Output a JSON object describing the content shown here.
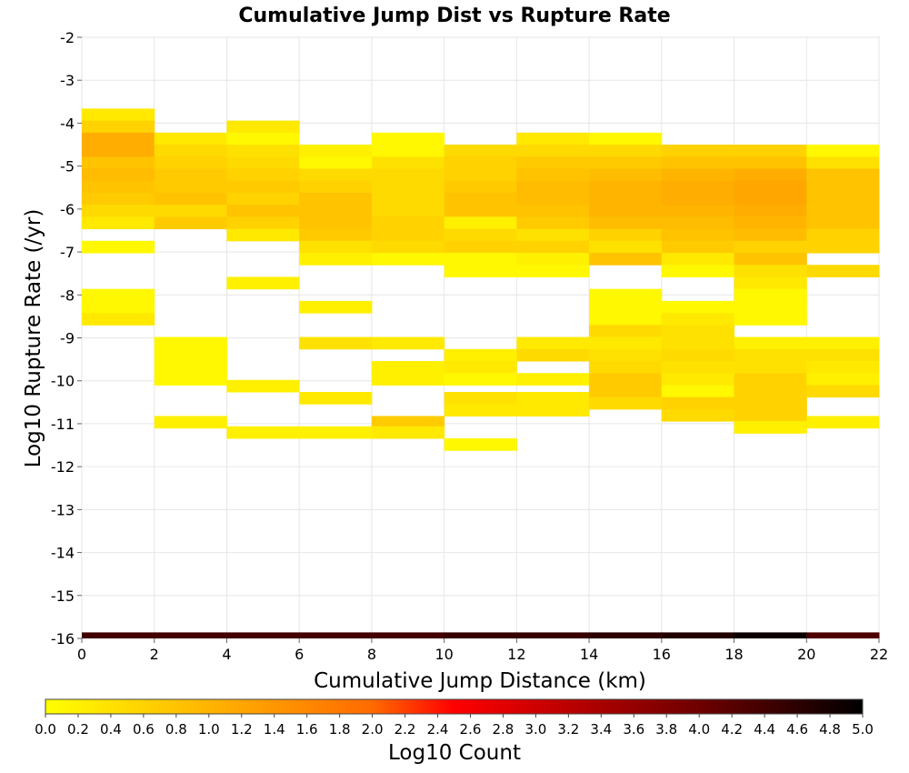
{
  "chart_data": {
    "type": "heatmap",
    "title": "Cumulative Jump Dist vs Rupture Rate",
    "xlabel": "Cumulative Jump Distance (km)",
    "ylabel": "Log10 Rupture Rate (/yr)",
    "xlim": [
      0,
      22
    ],
    "ylim": [
      -16,
      -2
    ],
    "xticks": [
      0,
      2,
      4,
      6,
      8,
      10,
      12,
      14,
      16,
      18,
      20,
      22
    ],
    "yticks": [
      -2,
      -3,
      -4,
      -5,
      -6,
      -7,
      -8,
      -9,
      -10,
      -11,
      -12,
      -13,
      -14,
      -15,
      -16
    ],
    "x_bin_width": 2,
    "y_bin_height": 0.28,
    "grid": true,
    "colorscale": {
      "label": "Log10 Count",
      "min": 0.0,
      "max": 5.0,
      "ticks": [
        "0.0",
        "0.2",
        "0.4",
        "0.6",
        "0.8",
        "1.0",
        "1.2",
        "1.4",
        "1.6",
        "1.8",
        "2.0",
        "2.2",
        "2.4",
        "2.6",
        "2.8",
        "3.0",
        "3.2",
        "3.4",
        "3.6",
        "3.8",
        "4.0",
        "4.2",
        "4.4",
        "4.6",
        "4.8",
        "5.0"
      ],
      "stops": [
        {
          "at": 0.0,
          "color": "#ffff00"
        },
        {
          "at": 0.4,
          "color": "#ff6a00"
        },
        {
          "at": 0.5,
          "color": "#ff0000"
        },
        {
          "at": 0.8,
          "color": "#6e0000"
        },
        {
          "at": 1.0,
          "color": "#000000"
        }
      ]
    },
    "columns": [
      {
        "x": 0,
        "cells": [
          {
            "y": -3.8,
            "v": 0.3
          },
          {
            "y": -4.08,
            "v": 0.6
          },
          {
            "y": -4.36,
            "v": 1.1
          },
          {
            "y": -4.64,
            "v": 1.1
          },
          {
            "y": -4.92,
            "v": 0.8
          },
          {
            "y": -5.2,
            "v": 0.9
          },
          {
            "y": -5.48,
            "v": 0.8
          },
          {
            "y": -5.76,
            "v": 0.7
          },
          {
            "y": -6.04,
            "v": 0.5
          },
          {
            "y": -6.32,
            "v": 0.3
          },
          {
            "y": -6.88,
            "v": 0.1
          },
          {
            "y": -8.0,
            "v": 0.1
          },
          {
            "y": -8.28,
            "v": 0.1
          },
          {
            "y": -8.56,
            "v": 0.3
          }
        ]
      },
      {
        "x": 2,
        "cells": [
          {
            "y": -4.36,
            "v": 0.3
          },
          {
            "y": -4.64,
            "v": 0.5
          },
          {
            "y": -4.92,
            "v": 0.6
          },
          {
            "y": -5.2,
            "v": 0.7
          },
          {
            "y": -5.48,
            "v": 0.7
          },
          {
            "y": -5.76,
            "v": 0.8
          },
          {
            "y": -6.04,
            "v": 0.5
          },
          {
            "y": -6.32,
            "v": 0.7
          },
          {
            "y": -9.12,
            "v": 0.1
          },
          {
            "y": -9.4,
            "v": 0.1
          },
          {
            "y": -9.68,
            "v": 0.1
          },
          {
            "y": -9.96,
            "v": 0.1
          },
          {
            "y": -10.96,
            "v": 0.2
          }
        ]
      },
      {
        "x": 4,
        "cells": [
          {
            "y": -4.08,
            "v": 0.3
          },
          {
            "y": -4.36,
            "v": 0.1
          },
          {
            "y": -4.64,
            "v": 0.4
          },
          {
            "y": -4.92,
            "v": 0.5
          },
          {
            "y": -5.2,
            "v": 0.6
          },
          {
            "y": -5.48,
            "v": 0.7
          },
          {
            "y": -5.76,
            "v": 0.6
          },
          {
            "y": -6.04,
            "v": 0.8
          },
          {
            "y": -6.32,
            "v": 0.6
          },
          {
            "y": -6.6,
            "v": 0.3
          },
          {
            "y": -7.72,
            "v": 0.2
          },
          {
            "y": -10.12,
            "v": 0.2
          },
          {
            "y": -11.2,
            "v": 0.2
          }
        ]
      },
      {
        "x": 6,
        "cells": [
          {
            "y": -4.64,
            "v": 0.2
          },
          {
            "y": -4.92,
            "v": 0.1
          },
          {
            "y": -5.2,
            "v": 0.5
          },
          {
            "y": -5.48,
            "v": 0.6
          },
          {
            "y": -5.76,
            "v": 0.8
          },
          {
            "y": -6.04,
            "v": 0.8
          },
          {
            "y": -6.32,
            "v": 0.8
          },
          {
            "y": -6.6,
            "v": 0.7
          },
          {
            "y": -6.88,
            "v": 0.4
          },
          {
            "y": -7.16,
            "v": 0.2
          },
          {
            "y": -8.28,
            "v": 0.2
          },
          {
            "y": -9.12,
            "v": 0.4
          },
          {
            "y": -10.4,
            "v": 0.3
          },
          {
            "y": -11.2,
            "v": 0.2
          }
        ]
      },
      {
        "x": 8,
        "cells": [
          {
            "y": -4.36,
            "v": 0.1
          },
          {
            "y": -4.64,
            "v": 0.1
          },
          {
            "y": -4.92,
            "v": 0.4
          },
          {
            "y": -5.2,
            "v": 0.5
          },
          {
            "y": -5.48,
            "v": 0.5
          },
          {
            "y": -5.76,
            "v": 0.5
          },
          {
            "y": -6.04,
            "v": 0.5
          },
          {
            "y": -6.32,
            "v": 0.6
          },
          {
            "y": -6.6,
            "v": 0.6
          },
          {
            "y": -6.88,
            "v": 0.5
          },
          {
            "y": -7.16,
            "v": 0.1
          },
          {
            "y": -9.12,
            "v": 0.3
          },
          {
            "y": -9.68,
            "v": 0.2
          },
          {
            "y": -9.96,
            "v": 0.2
          },
          {
            "y": -10.96,
            "v": 0.7
          },
          {
            "y": -11.2,
            "v": 0.3
          }
        ]
      },
      {
        "x": 10,
        "cells": [
          {
            "y": -4.64,
            "v": 0.5
          },
          {
            "y": -4.92,
            "v": 0.6
          },
          {
            "y": -5.2,
            "v": 0.6
          },
          {
            "y": -5.48,
            "v": 0.7
          },
          {
            "y": -5.76,
            "v": 0.8
          },
          {
            "y": -6.04,
            "v": 0.8
          },
          {
            "y": -6.32,
            "v": 0.2
          },
          {
            "y": -6.6,
            "v": 0.5
          },
          {
            "y": -6.88,
            "v": 0.6
          },
          {
            "y": -7.16,
            "v": 0.1
          },
          {
            "y": -7.44,
            "v": 0.1
          },
          {
            "y": -9.4,
            "v": 0.2
          },
          {
            "y": -9.68,
            "v": 0.3
          },
          {
            "y": -9.96,
            "v": 0.1
          },
          {
            "y": -10.4,
            "v": 0.4
          },
          {
            "y": -10.68,
            "v": 0.3
          },
          {
            "y": -11.48,
            "v": 0.1
          }
        ]
      },
      {
        "x": 12,
        "cells": [
          {
            "y": -4.36,
            "v": 0.3
          },
          {
            "y": -4.64,
            "v": 0.5
          },
          {
            "y": -4.92,
            "v": 0.7
          },
          {
            "y": -5.2,
            "v": 0.8
          },
          {
            "y": -5.48,
            "v": 0.9
          },
          {
            "y": -5.76,
            "v": 0.9
          },
          {
            "y": -6.04,
            "v": 0.8
          },
          {
            "y": -6.32,
            "v": 0.7
          },
          {
            "y": -6.6,
            "v": 0.4
          },
          {
            "y": -6.88,
            "v": 0.6
          },
          {
            "y": -7.16,
            "v": 0.2
          },
          {
            "y": -7.44,
            "v": 0.1
          },
          {
            "y": -9.12,
            "v": 0.3
          },
          {
            "y": -9.4,
            "v": 0.5
          },
          {
            "y": -9.96,
            "v": 0.2
          },
          {
            "y": -10.4,
            "v": 0.3
          },
          {
            "y": -10.68,
            "v": 0.3
          }
        ]
      },
      {
        "x": 14,
        "cells": [
          {
            "y": -4.36,
            "v": 0.1
          },
          {
            "y": -4.64,
            "v": 0.5
          },
          {
            "y": -4.92,
            "v": 0.7
          },
          {
            "y": -5.2,
            "v": 0.9
          },
          {
            "y": -5.48,
            "v": 1.0
          },
          {
            "y": -5.76,
            "v": 1.0
          },
          {
            "y": -6.04,
            "v": 1.0
          },
          {
            "y": -6.32,
            "v": 0.9
          },
          {
            "y": -6.6,
            "v": 0.6
          },
          {
            "y": -6.88,
            "v": 0.4
          },
          {
            "y": -7.16,
            "v": 0.8
          },
          {
            "y": -8.0,
            "v": 0.1
          },
          {
            "y": -8.28,
            "v": 0.1
          },
          {
            "y": -8.56,
            "v": 0.1
          },
          {
            "y": -8.84,
            "v": 0.5
          },
          {
            "y": -9.12,
            "v": 0.3
          },
          {
            "y": -9.4,
            "v": 0.4
          },
          {
            "y": -9.68,
            "v": 0.5
          },
          {
            "y": -9.96,
            "v": 0.7
          },
          {
            "y": -10.24,
            "v": 0.7
          },
          {
            "y": -10.52,
            "v": 0.5
          }
        ]
      },
      {
        "x": 16,
        "cells": [
          {
            "y": -4.64,
            "v": 0.6
          },
          {
            "y": -4.92,
            "v": 0.8
          },
          {
            "y": -5.2,
            "v": 1.0
          },
          {
            "y": -5.48,
            "v": 1.1
          },
          {
            "y": -5.76,
            "v": 1.1
          },
          {
            "y": -6.04,
            "v": 1.0
          },
          {
            "y": -6.32,
            "v": 0.9
          },
          {
            "y": -6.6,
            "v": 0.8
          },
          {
            "y": -6.88,
            "v": 0.7
          },
          {
            "y": -7.16,
            "v": 0.3
          },
          {
            "y": -7.44,
            "v": 0.1
          },
          {
            "y": -8.28,
            "v": 0.1
          },
          {
            "y": -8.56,
            "v": 0.3
          },
          {
            "y": -8.84,
            "v": 0.4
          },
          {
            "y": -9.12,
            "v": 0.4
          },
          {
            "y": -9.4,
            "v": 0.5
          },
          {
            "y": -9.68,
            "v": 0.4
          },
          {
            "y": -9.96,
            "v": 0.3
          },
          {
            "y": -10.24,
            "v": 0.1
          },
          {
            "y": -10.52,
            "v": 0.6
          },
          {
            "y": -10.8,
            "v": 0.5
          }
        ]
      },
      {
        "x": 18,
        "cells": [
          {
            "y": -4.64,
            "v": 0.6
          },
          {
            "y": -4.92,
            "v": 0.8
          },
          {
            "y": -5.2,
            "v": 1.1
          },
          {
            "y": -5.48,
            "v": 1.2
          },
          {
            "y": -5.76,
            "v": 1.2
          },
          {
            "y": -6.04,
            "v": 1.1
          },
          {
            "y": -6.32,
            "v": 1.0
          },
          {
            "y": -6.6,
            "v": 0.9
          },
          {
            "y": -6.88,
            "v": 0.6
          },
          {
            "y": -7.16,
            "v": 0.8
          },
          {
            "y": -7.44,
            "v": 0.4
          },
          {
            "y": -7.72,
            "v": 0.3
          },
          {
            "y": -8.0,
            "v": 0.1
          },
          {
            "y": -8.28,
            "v": 0.1
          },
          {
            "y": -8.56,
            "v": 0.1
          },
          {
            "y": -9.12,
            "v": 0.2
          },
          {
            "y": -9.4,
            "v": 0.4
          },
          {
            "y": -9.68,
            "v": 0.4
          },
          {
            "y": -9.96,
            "v": 0.6
          },
          {
            "y": -10.24,
            "v": 0.6
          },
          {
            "y": -10.52,
            "v": 0.6
          },
          {
            "y": -10.8,
            "v": 0.6
          },
          {
            "y": -11.08,
            "v": 0.2
          }
        ]
      },
      {
        "x": 20,
        "cells": [
          {
            "y": -4.64,
            "v": 0.1
          },
          {
            "y": -4.92,
            "v": 0.4
          },
          {
            "y": -5.2,
            "v": 0.8
          },
          {
            "y": -5.48,
            "v": 0.8
          },
          {
            "y": -5.76,
            "v": 0.8
          },
          {
            "y": -6.04,
            "v": 0.8
          },
          {
            "y": -6.32,
            "v": 0.8
          },
          {
            "y": -6.6,
            "v": 0.6
          },
          {
            "y": -6.88,
            "v": 0.6
          },
          {
            "y": -7.44,
            "v": 0.5
          },
          {
            "y": -9.12,
            "v": 0.2
          },
          {
            "y": -9.4,
            "v": 0.4
          },
          {
            "y": -9.68,
            "v": 0.3
          },
          {
            "y": -9.96,
            "v": 0.2
          },
          {
            "y": -10.24,
            "v": 0.5
          },
          {
            "y": -10.96,
            "v": 0.2
          }
        ]
      }
    ],
    "bottom_row": {
      "y": -16.0,
      "values": [
        4.4,
        4.4,
        4.4,
        4.4,
        4.4,
        4.5,
        4.5,
        4.6,
        4.7,
        4.9,
        4.3
      ]
    }
  }
}
